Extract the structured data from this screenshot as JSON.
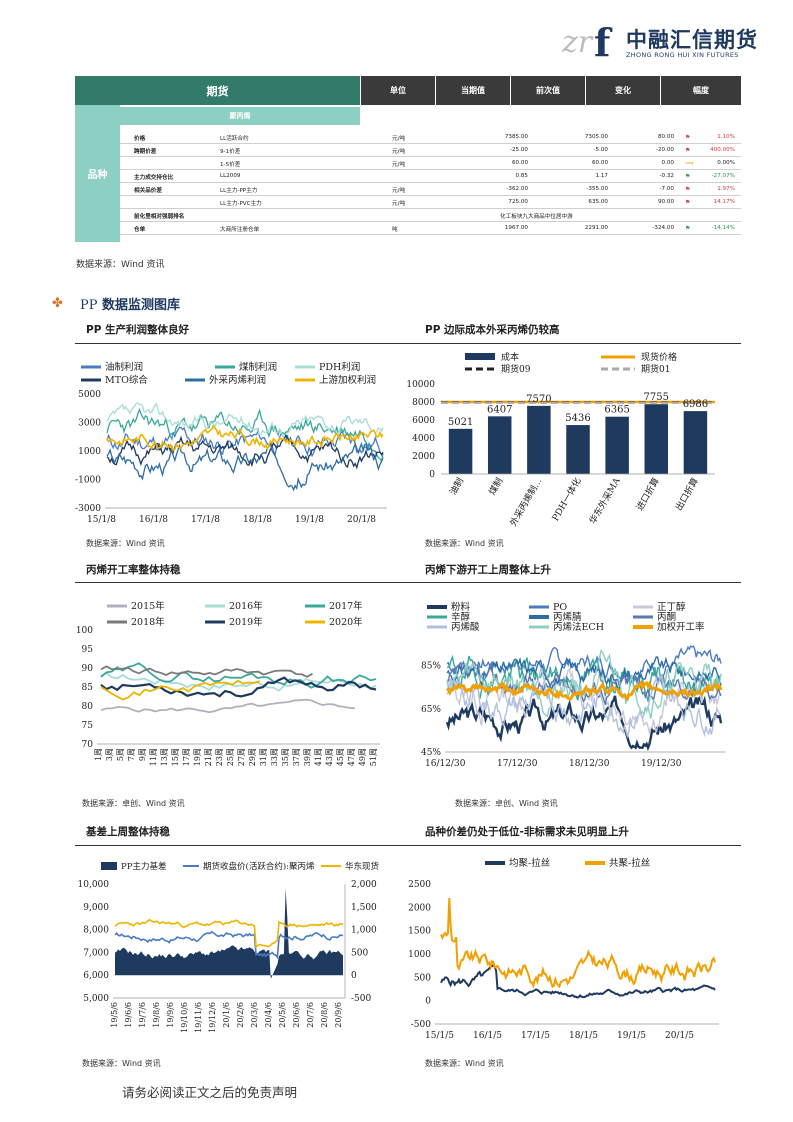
{
  "logo": {
    "mark": "zrf",
    "name_cn": "中融汇信期货",
    "name_en": "ZHONG RONG HUI XIN FUTURES"
  },
  "table": {
    "main_header": "期货",
    "headers": [
      "单位",
      "当期值",
      "前次值",
      "变化",
      "幅度"
    ],
    "variety_label": "品种",
    "variety_name": "聚丙烯",
    "rows": [
      {
        "name": "价格",
        "item": "LL活跃合约",
        "unit": "元/吨",
        "current": "7385.00",
        "previous": "7305.00",
        "change": "80.00",
        "pct": "1.10%",
        "dir": "up"
      },
      {
        "name": "跨期价差",
        "item": "9-1价差",
        "unit": "元/吨",
        "current": "-25.00",
        "previous": "-5.00",
        "change": "-20.00",
        "pct": "400.00%",
        "dir": "up"
      },
      {
        "name": "",
        "item": "1-5价差",
        "unit": "元/吨",
        "current": "60.00",
        "previous": "60.00",
        "change": "0.00",
        "pct": "0.00%",
        "dir": "flat"
      },
      {
        "name": "主力成交持仓比",
        "item": "LL2009",
        "unit": "",
        "current": "0.85",
        "previous": "1.17",
        "change": "-0.32",
        "pct": "-27.07%",
        "dir": "down"
      },
      {
        "name": "相关品价差",
        "item": "LL主力-PP主力",
        "unit": "元/吨",
        "current": "-362.00",
        "previous": "-355.00",
        "change": "-7.00",
        "pct": "1.97%",
        "dir": "up"
      },
      {
        "name": "",
        "item": "LL主力-PVC主力",
        "unit": "元/吨",
        "current": "725.00",
        "previous": "635.00",
        "change": "90.00",
        "pct": "14.17%",
        "dir": "up"
      },
      {
        "name": "前化里相对强弱排名",
        "item": "",
        "span": "化工板块九大商品中位居中游"
      },
      {
        "name": "仓单",
        "item": "大商所注册仓单",
        "unit": "吨",
        "current": "1967.00",
        "previous": "2291.00",
        "change": "-324.00",
        "pct": "-14.14%",
        "dir": "down"
      }
    ]
  },
  "source_main": "数据来源：Wind 资讯",
  "section": {
    "icon": "fleur-icon",
    "prefix": "PP",
    "title": "数据监测图库"
  },
  "chart_data": [
    {
      "type": "line",
      "title": "PP 生产利润整体良好",
      "series": [
        {
          "name": "油制利润",
          "color": "#4a7cc4"
        },
        {
          "name": "煤制利润",
          "color": "#3aa89a"
        },
        {
          "name": "PDH利润",
          "color": "#a8dcd6"
        },
        {
          "name": "MTO综合",
          "color": "#1e3a5f"
        },
        {
          "name": "外采丙烯利润",
          "color": "#2e6da4"
        },
        {
          "name": "上游加权利润",
          "color": "#f0b400"
        }
      ],
      "yticks": [
        "5000",
        "3000",
        "1000",
        "-1000",
        "-3000"
      ],
      "xticks": [
        "15/1/8",
        "16/1/8",
        "17/1/8",
        "18/1/8",
        "19/1/8",
        "20/1/8"
      ],
      "ylim": [
        -3000,
        5000
      ],
      "source": "数据来源：Wind 资讯"
    },
    {
      "type": "bar",
      "title": "PP 边际成本外采丙烯仍较高",
      "legend": [
        "成本",
        "现货价格",
        "期货09",
        "期货01"
      ],
      "categories": [
        "油制",
        "煤制",
        "外采丙烯制…",
        "PDH一体化",
        "华东外采MA",
        "进口折算",
        "出口折算"
      ],
      "values": [
        5021,
        6407,
        7570,
        5436,
        6365,
        7755,
        6986
      ],
      "value_labels": [
        "5021",
        "6407",
        "7570",
        "5436",
        "6365",
        "7755",
        "6986"
      ],
      "spot_price": 8000,
      "futures09": 7950,
      "futures01": 7900,
      "yticks": [
        "10000",
        "8000",
        "6000",
        "4000",
        "2000",
        "0"
      ],
      "ylim": [
        0,
        10000
      ],
      "source": "数据来源：Wind 资讯"
    },
    {
      "type": "line",
      "title": "丙烯开工率整体持稳",
      "series": [
        {
          "name": "2015年",
          "color": "#b0b0c0"
        },
        {
          "name": "2016年",
          "color": "#a8dcd6"
        },
        {
          "name": "2017年",
          "color": "#3aa89a"
        },
        {
          "name": "2018年",
          "color": "#7a7a7a"
        },
        {
          "name": "2019年",
          "color": "#1e3a5f"
        },
        {
          "name": "2020年",
          "color": "#f0b400"
        }
      ],
      "yticks": [
        "100",
        "95",
        "90",
        "85",
        "80",
        "75",
        "70"
      ],
      "ylim": [
        70,
        100
      ],
      "xticks": [
        "1周",
        "3周",
        "5周",
        "7周",
        "9周",
        "11周",
        "13周",
        "15周",
        "17周",
        "19周",
        "21周",
        "23周",
        "25周",
        "27周",
        "29周",
        "31周",
        "33周",
        "35周",
        "37周",
        "39周",
        "41周",
        "43周",
        "45周",
        "47周",
        "49周",
        "51周"
      ],
      "source": "数据来源：卓创、Wind 资讯"
    },
    {
      "type": "line",
      "title": "丙烯下游开工上周整体上升",
      "series": [
        {
          "name": "粉料",
          "color": "#1e3a5f"
        },
        {
          "name": "PO",
          "color": "#4a7cc4"
        },
        {
          "name": "正丁醇",
          "color": "#c8c8d8"
        },
        {
          "name": "辛醇",
          "color": "#3aa89a"
        },
        {
          "name": "丙烯腈",
          "color": "#2e6da4"
        },
        {
          "name": "丙酮",
          "color": "#5a7ab0"
        },
        {
          "name": "丙烯酸",
          "color": "#b0c0e0"
        },
        {
          "name": "丙烯法ECH",
          "color": "#8ecfc3"
        },
        {
          "name": "加权开工率",
          "color": "#f0a000"
        }
      ],
      "yticks": [
        "85%",
        "65%",
        "45%"
      ],
      "ylim": [
        45,
        95
      ],
      "xticks": [
        "16/12/30",
        "17/12/30",
        "18/12/30",
        "19/12/30"
      ],
      "source": "数据来源：卓创、Wind 资讯"
    },
    {
      "type": "area",
      "title": "基差上周整体持稳",
      "series": [
        {
          "name": "PP主力基差",
          "color": "#1e3a5f"
        },
        {
          "name": "期货收盘价(活跃合约):聚丙烯",
          "color": "#4a7cc4"
        },
        {
          "name": "华东现货",
          "color": "#f0b400"
        }
      ],
      "yticks_left": [
        "10,000",
        "9,000",
        "8,000",
        "7,000",
        "6,000",
        "5,000"
      ],
      "yticks_right": [
        "2,000",
        "1,500",
        "1,000",
        "500",
        "0",
        "-500"
      ],
      "ylim_left": [
        5000,
        10000
      ],
      "ylim_right": [
        -500,
        2000
      ],
      "xticks": [
        "19/5/6",
        "19/6/6",
        "19/7/6",
        "19/8/6",
        "19/9/6",
        "19/10/6",
        "19/11/6",
        "19/12/6",
        "20/1/6",
        "20/2/6",
        "20/3/6",
        "20/4/6",
        "20/5/6",
        "20/6/6",
        "20/7/6",
        "20/8/6",
        "20/9/6"
      ],
      "source": "数据来源：Wind 资讯"
    },
    {
      "type": "line",
      "title": "品种价差仍处于低位-非标需求未见明显上升",
      "series": [
        {
          "name": "均聚-拉丝",
          "color": "#1e3a5f"
        },
        {
          "name": "共聚-拉丝",
          "color": "#f0a000"
        }
      ],
      "yticks": [
        "2500",
        "2000",
        "1500",
        "1000",
        "500",
        "0",
        "-500"
      ],
      "ylim": [
        -500,
        2500
      ],
      "xticks": [
        "15/1/5",
        "16/1/5",
        "17/1/5",
        "18/1/5",
        "19/1/5",
        "20/1/5"
      ],
      "source": "数据来源：Wind 资讯"
    }
  ],
  "disclaimer": "请务必阅读正文之后的免责声明"
}
